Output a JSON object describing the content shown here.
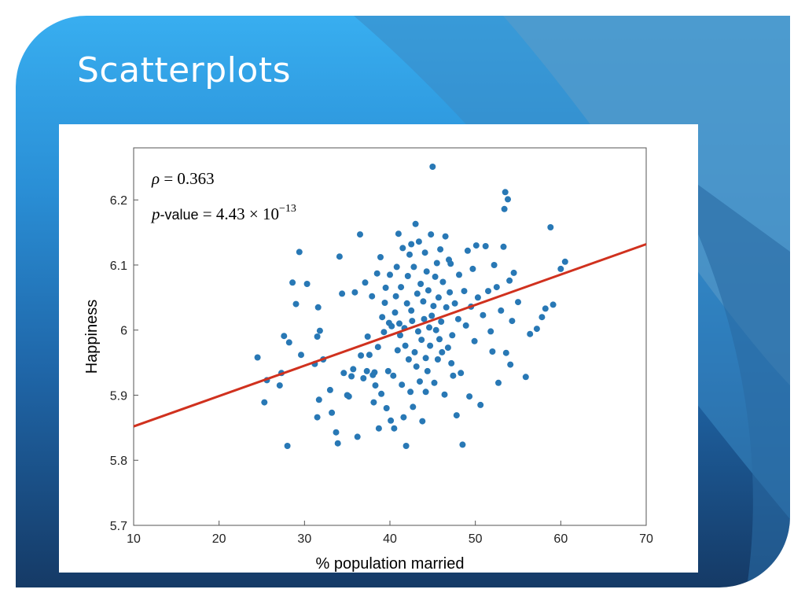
{
  "slide": {
    "title": "Scatterplots"
  },
  "colors": {
    "point": "#2878b5",
    "fit_line": "#d0311e",
    "slide_top": "#38aef0",
    "slide_bottom": "#153a66"
  },
  "chart_data": {
    "type": "scatter",
    "xlabel": "% population married",
    "ylabel": "Happiness",
    "xlim": [
      10,
      70
    ],
    "ylim": [
      5.7,
      6.28
    ],
    "xticks": [
      10,
      20,
      30,
      40,
      50,
      60,
      70
    ],
    "yticks": [
      5.7,
      5.8,
      5.9,
      6.0,
      6.1,
      6.2
    ],
    "ytick_labels": [
      "5.7",
      "5.8",
      "5.9",
      "6",
      "6.1",
      "6.2"
    ],
    "grid": false,
    "annotations": {
      "rho_symbol": "ρ",
      "rho_eq": " = 0.363",
      "p_symbol": "p",
      "p_text": "-value",
      "p_eq": " = 4.43 × 10",
      "p_exp": "−13"
    },
    "fit_line": {
      "x": [
        10,
        70
      ],
      "y": [
        5.852,
        6.132
      ]
    },
    "points": [
      [
        24.5,
        5.958
      ],
      [
        25.6,
        5.923
      ],
      [
        25.3,
        5.889
      ],
      [
        27.1,
        5.915
      ],
      [
        27.3,
        5.934
      ],
      [
        27.6,
        5.991
      ],
      [
        28.2,
        5.981
      ],
      [
        28.0,
        5.822
      ],
      [
        28.6,
        6.073
      ],
      [
        29.0,
        6.04
      ],
      [
        29.4,
        6.12
      ],
      [
        30.3,
        6.071
      ],
      [
        29.6,
        5.962
      ],
      [
        31.2,
        5.948
      ],
      [
        31.5,
        5.99
      ],
      [
        31.6,
        6.035
      ],
      [
        31.8,
        5.999
      ],
      [
        31.7,
        5.893
      ],
      [
        32.2,
        5.955
      ],
      [
        31.5,
        5.866
      ],
      [
        33.2,
        5.873
      ],
      [
        33.0,
        5.908
      ],
      [
        33.7,
        5.843
      ],
      [
        33.9,
        5.826
      ],
      [
        34.1,
        6.113
      ],
      [
        34.6,
        5.934
      ],
      [
        34.4,
        6.056
      ],
      [
        35.0,
        5.9
      ],
      [
        35.5,
        5.929
      ],
      [
        35.7,
        5.94
      ],
      [
        35.9,
        6.058
      ],
      [
        35.2,
        5.898
      ],
      [
        36.2,
        5.836
      ],
      [
        36.5,
        6.147
      ],
      [
        36.6,
        5.961
      ],
      [
        36.9,
        5.926
      ],
      [
        37.3,
        5.937
      ],
      [
        37.4,
        5.99
      ],
      [
        37.1,
        6.073
      ],
      [
        37.6,
        5.962
      ],
      [
        37.9,
        6.052
      ],
      [
        38.1,
        5.889
      ],
      [
        38.3,
        5.915
      ],
      [
        38.0,
        5.931
      ],
      [
        38.5,
        6.087
      ],
      [
        38.6,
        5.974
      ],
      [
        38.7,
        5.849
      ],
      [
        38.9,
        6.112
      ],
      [
        38.2,
        5.935
      ],
      [
        39.1,
        6.02
      ],
      [
        39.3,
        5.997
      ],
      [
        39.4,
        6.042
      ],
      [
        39.0,
        5.902
      ],
      [
        39.6,
        5.88
      ],
      [
        39.5,
        6.065
      ],
      [
        39.8,
        5.937
      ],
      [
        40.0,
        6.085
      ],
      [
        40.1,
        5.861
      ],
      [
        40.2,
        6.006
      ],
      [
        40.4,
        5.93
      ],
      [
        40.5,
        5.849
      ],
      [
        40.6,
        6.027
      ],
      [
        40.7,
        6.052
      ],
      [
        40.9,
        5.969
      ],
      [
        40.8,
        6.097
      ],
      [
        41.0,
        6.148
      ],
      [
        41.1,
        6.01
      ],
      [
        41.2,
        5.992
      ],
      [
        41.3,
        6.066
      ],
      [
        41.4,
        5.916
      ],
      [
        41.5,
        6.126
      ],
      [
        41.6,
        5.866
      ],
      [
        41.7,
        6.003
      ],
      [
        41.8,
        5.976
      ],
      [
        41.9,
        5.822
      ],
      [
        42.0,
        6.041
      ],
      [
        42.1,
        6.083
      ],
      [
        42.2,
        5.955
      ],
      [
        42.3,
        6.116
      ],
      [
        42.4,
        5.905
      ],
      [
        42.5,
        6.03
      ],
      [
        42.6,
        6.014
      ],
      [
        42.7,
        5.882
      ],
      [
        42.8,
        6.097
      ],
      [
        42.9,
        5.966
      ],
      [
        43.0,
        6.163
      ],
      [
        43.1,
        5.944
      ],
      [
        43.2,
        6.056
      ],
      [
        43.3,
        5.998
      ],
      [
        43.4,
        6.136
      ],
      [
        43.5,
        5.921
      ],
      [
        43.6,
        6.071
      ],
      [
        43.7,
        5.985
      ],
      [
        43.8,
        5.86
      ],
      [
        43.9,
        6.044
      ],
      [
        44.0,
        6.017
      ],
      [
        44.1,
        6.119
      ],
      [
        44.2,
        5.957
      ],
      [
        44.3,
        6.09
      ],
      [
        44.4,
        5.937
      ],
      [
        44.5,
        6.061
      ],
      [
        44.6,
        6.004
      ],
      [
        44.7,
        5.976
      ],
      [
        44.8,
        6.147
      ],
      [
        45.0,
        6.251
      ],
      [
        45.1,
        6.037
      ],
      [
        45.2,
        5.919
      ],
      [
        45.3,
        6.082
      ],
      [
        45.4,
        6.0
      ],
      [
        45.5,
        6.103
      ],
      [
        45.6,
        5.955
      ],
      [
        45.7,
        6.05
      ],
      [
        45.8,
        5.986
      ],
      [
        45.9,
        6.124
      ],
      [
        46.0,
        6.013
      ],
      [
        46.1,
        5.966
      ],
      [
        46.2,
        6.074
      ],
      [
        46.4,
        5.901
      ],
      [
        46.5,
        6.144
      ],
      [
        46.6,
        6.035
      ],
      [
        46.8,
        5.973
      ],
      [
        47.0,
        6.058
      ],
      [
        47.1,
        6.102
      ],
      [
        47.3,
        5.992
      ],
      [
        47.4,
        5.93
      ],
      [
        47.6,
        6.041
      ],
      [
        47.8,
        5.869
      ],
      [
        48.0,
        6.017
      ],
      [
        48.1,
        6.085
      ],
      [
        48.3,
        5.934
      ],
      [
        48.5,
        5.824
      ],
      [
        48.7,
        6.06
      ],
      [
        48.9,
        6.007
      ],
      [
        49.1,
        6.122
      ],
      [
        49.3,
        5.898
      ],
      [
        49.5,
        6.036
      ],
      [
        49.7,
        6.094
      ],
      [
        49.9,
        5.983
      ],
      [
        50.1,
        6.13
      ],
      [
        50.3,
        6.05
      ],
      [
        50.6,
        5.885
      ],
      [
        50.9,
        6.023
      ],
      [
        51.2,
        6.129
      ],
      [
        51.5,
        6.06
      ],
      [
        51.8,
        5.998
      ],
      [
        52.0,
        5.967
      ],
      [
        52.2,
        6.1
      ],
      [
        52.5,
        6.066
      ],
      [
        52.7,
        5.919
      ],
      [
        53.0,
        6.03
      ],
      [
        53.3,
        6.128
      ],
      [
        53.4,
        6.186
      ],
      [
        53.5,
        6.212
      ],
      [
        53.6,
        5.965
      ],
      [
        53.8,
        6.201
      ],
      [
        54.0,
        6.076
      ],
      [
        54.1,
        5.947
      ],
      [
        54.3,
        6.014
      ],
      [
        54.5,
        6.088
      ],
      [
        55.0,
        6.043
      ],
      [
        55.9,
        5.928
      ],
      [
        56.4,
        5.994
      ],
      [
        57.2,
        6.002
      ],
      [
        57.8,
        6.02
      ],
      [
        58.2,
        6.033
      ],
      [
        58.8,
        6.158
      ],
      [
        59.1,
        6.039
      ],
      [
        60.0,
        6.094
      ],
      [
        60.5,
        6.105
      ],
      [
        44.2,
        5.905
      ],
      [
        46.9,
        6.108
      ],
      [
        42.5,
        6.132
      ],
      [
        47.2,
        5.949
      ],
      [
        39.9,
        6.011
      ],
      [
        44.9,
        6.022
      ]
    ]
  }
}
